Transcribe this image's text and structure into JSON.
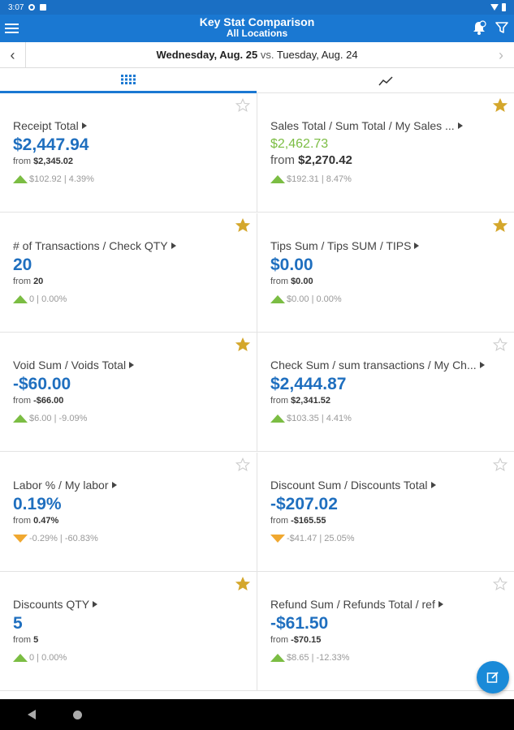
{
  "status_bar": {
    "time": "3:07"
  },
  "app_bar": {
    "title": "Key Stat Comparison",
    "subtitle": "All Locations",
    "icons": [
      "menu-icon",
      "notification-icon",
      "filter-icon"
    ]
  },
  "date_bar": {
    "primary_date": "Wednesday, Aug. 25",
    "vs_label": " vs. ",
    "compare_date": "Tuesday, Aug. 24",
    "prev_glyph": "‹",
    "next_glyph": "›"
  },
  "tabs": [
    {
      "name": "grid-view",
      "icon": "grid-icon",
      "active": true
    },
    {
      "name": "chart-view",
      "icon": "trend-chart-icon",
      "active": false
    }
  ],
  "colors": {
    "accent": "#1a78d2",
    "value_blue": "#1f6fbf",
    "up_green": "#7bbd43",
    "down_orange": "#f0a830",
    "star_gold": "#d4a72c"
  },
  "cards": [
    {
      "label": "Receipt Total",
      "value": "$2,447.94",
      "from_prefix": "from ",
      "from_value": "$2,345.02",
      "change": "$102.92 | 4.39%",
      "direction": "up",
      "starred": false,
      "style": "normal"
    },
    {
      "label": "Sales Total / Sum Total / My Sales ...",
      "value": "$2,462.73",
      "from_prefix": "from ",
      "from_value": "$2,270.42",
      "change": "$192.31 | 8.47%",
      "direction": "up",
      "starred": true,
      "style": "alt"
    },
    {
      "label": "# of Transactions / Check QTY",
      "value": "20",
      "from_prefix": "from ",
      "from_value": "20",
      "change": "0 | 0.00%",
      "direction": "up",
      "starred": true,
      "style": "normal"
    },
    {
      "label": "Tips Sum / Tips SUM / TIPS",
      "value": "$0.00",
      "from_prefix": "from ",
      "from_value": "$0.00",
      "change": "$0.00 | 0.00%",
      "direction": "up",
      "starred": true,
      "style": "normal"
    },
    {
      "label": "Void Sum / Voids Total",
      "value": "-$60.00",
      "from_prefix": "from ",
      "from_value": "-$66.00",
      "change": "$6.00 | -9.09%",
      "direction": "up",
      "starred": true,
      "style": "normal"
    },
    {
      "label": "Check Sum / sum transactions / My Ch...",
      "value": "$2,444.87",
      "from_prefix": "from ",
      "from_value": "$2,341.52",
      "change": "$103.35 | 4.41%",
      "direction": "up",
      "starred": false,
      "style": "normal"
    },
    {
      "label": "Labor % / My labor",
      "value": "0.19%",
      "from_prefix": "from ",
      "from_value": "0.47%",
      "change": "-0.29% | -60.83%",
      "direction": "down",
      "starred": false,
      "style": "normal"
    },
    {
      "label": "Discount Sum / Discounts Total",
      "value": "-$207.02",
      "from_prefix": "from ",
      "from_value": "-$165.55",
      "change": "-$41.47 | 25.05%",
      "direction": "down",
      "starred": false,
      "style": "normal"
    },
    {
      "label": "Discounts QTY",
      "value": "5",
      "from_prefix": "from ",
      "from_value": "5",
      "change": "0 | 0.00%",
      "direction": "up",
      "starred": true,
      "style": "normal"
    },
    {
      "label": "Refund Sum / Refunds Total / ref",
      "value": "-$61.50",
      "from_prefix": "from ",
      "from_value": "-$70.15",
      "change": "$8.65 | -12.33%",
      "direction": "up",
      "starred": false,
      "style": "normal"
    }
  ],
  "fab": {
    "icon": "edit-icon"
  }
}
